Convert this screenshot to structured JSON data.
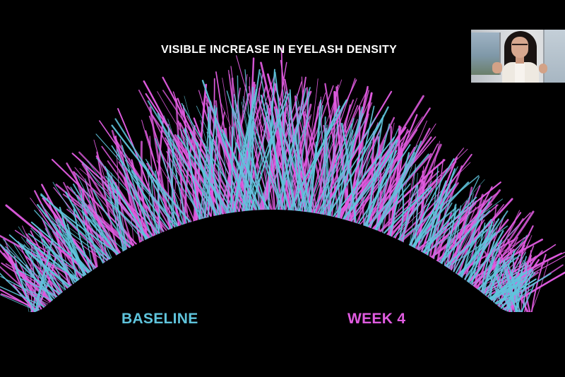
{
  "slide": {
    "title": "VISIBLE INCREASE IN EYELASH DENSITY",
    "baseline_label": "BASELINE",
    "week_label": "WEEK 4",
    "colors": {
      "baseline": "#5fc4dc",
      "week": "#e05be0",
      "background": "#000000"
    }
  },
  "webcam": {
    "description_icon": "presenter-video-icon"
  }
}
